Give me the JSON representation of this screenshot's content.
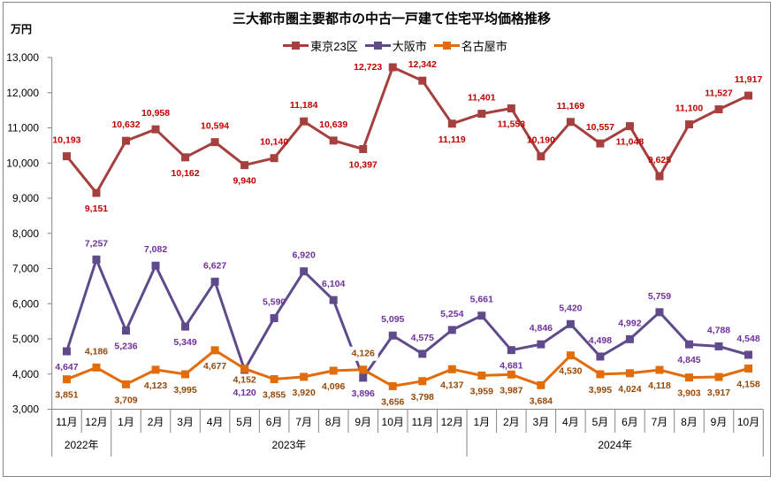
{
  "title": "三大都市圏主要都市の中古一戸建て住宅平均価格推移",
  "unit_label": "万円",
  "legend": [
    {
      "label": "東京23区",
      "color": "#A5403F"
    },
    {
      "label": "大阪市",
      "color": "#5F4B8B"
    },
    {
      "label": "名古屋市",
      "color": "#E36C0A"
    }
  ],
  "chart_data": {
    "type": "line",
    "title": "三大都市圏主要都市の中古一戸建て住宅平均価格推移",
    "xlabel": "",
    "ylabel": "万円",
    "ylim": [
      3000,
      13000
    ],
    "yticks": [
      3000,
      4000,
      5000,
      6000,
      7000,
      8000,
      9000,
      10000,
      11000,
      12000,
      13000
    ],
    "ytick_labels": [
      "3,000",
      "4,000",
      "5,000",
      "6,000",
      "7,000",
      "8,000",
      "9,000",
      "10,000",
      "11,000",
      "12,000",
      "13,000"
    ],
    "grid": false,
    "legend_position": "top",
    "categories": [
      "11月",
      "12月",
      "1月",
      "2月",
      "3月",
      "4月",
      "5月",
      "6月",
      "7月",
      "8月",
      "9月",
      "10月",
      "11月",
      "12月",
      "1月",
      "2月",
      "3月",
      "4月",
      "5月",
      "6月",
      "7月",
      "8月",
      "9月",
      "10月"
    ],
    "year_groups": [
      {
        "label": "2022年",
        "span": 2
      },
      {
        "label": "2023年",
        "span": 12
      },
      {
        "label": "2024年",
        "span": 10
      }
    ],
    "series": [
      {
        "name": "東京23区",
        "color": "#A5403F",
        "label_color": "#C00000",
        "values": [
          10193,
          9151,
          10632,
          10958,
          10162,
          10594,
          9940,
          10140,
          11184,
          10639,
          10397,
          12723,
          12342,
          11119,
          11401,
          11553,
          10190,
          11169,
          10557,
          11048,
          9625,
          11100,
          11527,
          11917
        ]
      },
      {
        "name": "大阪市",
        "color": "#5F4B8B",
        "label_color": "#7030A0",
        "values": [
          4647,
          7257,
          5236,
          7082,
          5349,
          6627,
          4120,
          5590,
          6920,
          6104,
          3896,
          5095,
          4575,
          5254,
          5661,
          4681,
          4846,
          5420,
          4498,
          4992,
          5759,
          4845,
          4788,
          4548
        ]
      },
      {
        "name": "名古屋市",
        "color": "#E36C0A",
        "label_color": "#984807",
        "values": [
          3851,
          4186,
          3709,
          4123,
          3995,
          4677,
          4152,
          3855,
          3920,
          4096,
          4126,
          3656,
          3798,
          4137,
          3959,
          3987,
          3684,
          4530,
          3995,
          4024,
          4118,
          3903,
          3917,
          4158
        ]
      }
    ]
  }
}
